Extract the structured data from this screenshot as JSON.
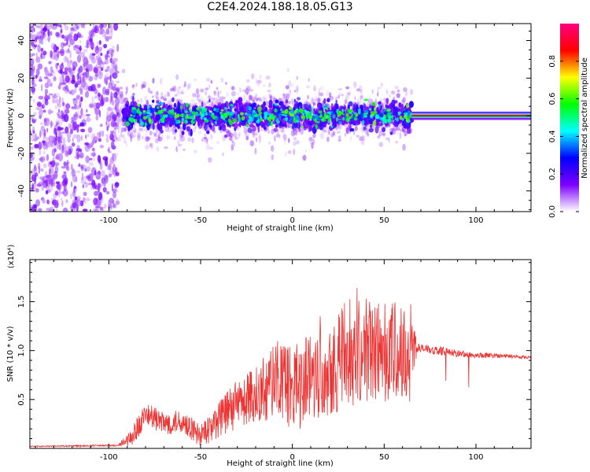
{
  "title": "C2E4.2024.188.18.05.G13",
  "chart_data": [
    {
      "type": "heatmap",
      "xlabel": "Height of straight line (km)",
      "ylabel": "Frequency (Hz)",
      "xlim": [
        -143,
        130
      ],
      "ylim": [
        -51,
        49
      ],
      "x_ticks": [
        -100,
        -50,
        0,
        50,
        100
      ],
      "x_tick_labels": [
        "-100",
        "-50",
        "0",
        "50",
        "100"
      ],
      "y_ticks": [
        -40,
        -20,
        0,
        20,
        40
      ],
      "y_tick_labels": [
        "-40",
        "-20",
        "0",
        "20",
        "40"
      ],
      "colorbar": {
        "label": "Normalized spectral amplitude",
        "range": [
          0,
          1
        ],
        "ticks": [
          0.0,
          0.2,
          0.4,
          0.6,
          0.8
        ],
        "tick_labels": [
          "0.0",
          "0.2",
          "0.4",
          "0.6",
          "0.8"
        ],
        "colors": [
          "#ffffff",
          "#7d00ff",
          "#0000ff",
          "#00ffff",
          "#00ff00",
          "#ffff00",
          "#ff0000",
          "#ff0080"
        ]
      },
      "regions": [
        {
          "x": [
            -143,
            -95
          ],
          "description_level": 0.15,
          "freq_spread": 49
        },
        {
          "x": [
            -95,
            65
          ],
          "description_level": 0.45,
          "freq_spread": 6
        },
        {
          "x": [
            65,
            130
          ],
          "description_level": 0.95,
          "freq_spread": 1
        }
      ],
      "grid": false
    },
    {
      "type": "line",
      "xlabel": "Height of straight line (km)",
      "ylabel": "SNR (10 * v/v)",
      "y_multiplier": "(x10⁴)",
      "xlim": [
        -143,
        130
      ],
      "ylim": [
        0,
        1.93
      ],
      "x_ticks": [
        -100,
        -50,
        0,
        50,
        100
      ],
      "x_tick_labels": [
        "-100",
        "-50",
        "0",
        "50",
        "100"
      ],
      "y_ticks": [
        0.5,
        1.0,
        1.5
      ],
      "y_tick_labels": [
        "0.5",
        "1.0",
        "1.5"
      ],
      "color": "#ee3333",
      "grid": false,
      "envelope": [
        {
          "x": -143,
          "y": 0.02
        },
        {
          "x": -95,
          "y": 0.03
        },
        {
          "x": -88,
          "y": 0.1
        },
        {
          "x": -80,
          "y": 0.35
        },
        {
          "x": -70,
          "y": 0.25
        },
        {
          "x": -60,
          "y": 0.28
        },
        {
          "x": -50,
          "y": 0.12
        },
        {
          "x": -40,
          "y": 0.3
        },
        {
          "x": -30,
          "y": 0.45
        },
        {
          "x": -20,
          "y": 0.55
        },
        {
          "x": -10,
          "y": 0.7
        },
        {
          "x": 0,
          "y": 0.6
        },
        {
          "x": 10,
          "y": 0.75
        },
        {
          "x": 20,
          "y": 0.85
        },
        {
          "x": 30,
          "y": 0.95
        },
        {
          "x": 40,
          "y": 1.0
        },
        {
          "x": 50,
          "y": 1.0
        },
        {
          "x": 60,
          "y": 0.95
        },
        {
          "x": 65,
          "y": 1.05
        },
        {
          "x": 70,
          "y": 1.02
        },
        {
          "x": 80,
          "y": 1.0
        },
        {
          "x": 90,
          "y": 0.97
        },
        {
          "x": 100,
          "y": 0.95
        },
        {
          "x": 110,
          "y": 0.95
        },
        {
          "x": 130,
          "y": 0.93
        }
      ],
      "noise_amplitude": [
        {
          "x": -143,
          "y": 0.005
        },
        {
          "x": -95,
          "y": 0.01
        },
        {
          "x": -85,
          "y": 0.12
        },
        {
          "x": -50,
          "y": 0.12
        },
        {
          "x": -30,
          "y": 0.25
        },
        {
          "x": 0,
          "y": 0.45
        },
        {
          "x": 30,
          "y": 0.55
        },
        {
          "x": 50,
          "y": 0.55
        },
        {
          "x": 64,
          "y": 0.55
        },
        {
          "x": 68,
          "y": 0.05
        },
        {
          "x": 100,
          "y": 0.03
        },
        {
          "x": 130,
          "y": 0.015
        }
      ]
    }
  ]
}
